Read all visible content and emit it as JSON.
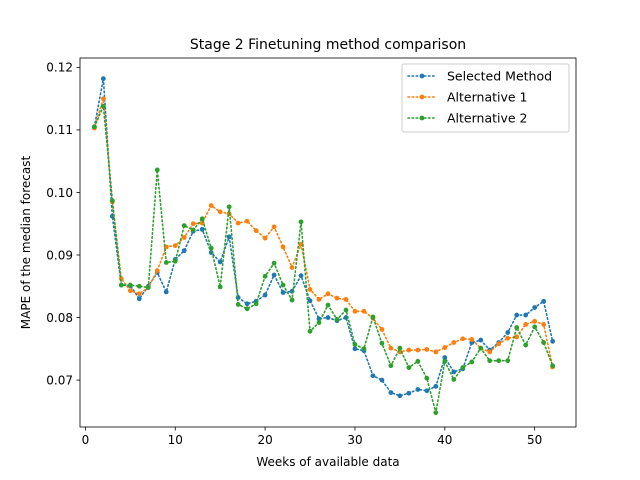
{
  "chart_data": {
    "type": "line",
    "title": "Stage 2 Finetuning method comparison",
    "xlabel": "Weeks of available data",
    "ylabel": "MAPE of the median forecast",
    "xlim": [
      -0.6,
      54.6
    ],
    "ylim": [
      0.0625,
      0.1215
    ],
    "xticks": [
      0,
      10,
      20,
      30,
      40,
      50
    ],
    "yticks": [
      0.07,
      0.08,
      0.09,
      0.1,
      0.11,
      0.12
    ],
    "ytick_labels": [
      "0.07",
      "0.08",
      "0.09",
      "0.10",
      "0.11",
      "0.12"
    ],
    "grid": false,
    "legend_position": "upper right",
    "x": [
      1,
      2,
      3,
      4,
      5,
      6,
      7,
      8,
      9,
      10,
      11,
      12,
      13,
      14,
      15,
      16,
      17,
      18,
      19,
      20,
      21,
      22,
      23,
      24,
      25,
      26,
      27,
      28,
      29,
      30,
      31,
      32,
      33,
      34,
      35,
      36,
      37,
      38,
      39,
      40,
      41,
      42,
      43,
      44,
      45,
      46,
      47,
      48,
      49,
      50,
      51,
      52
    ],
    "series": [
      {
        "name": "Selected Method",
        "color": "#1f77b4",
        "line_style": "dotted",
        "values": [
          0.1105,
          0.1182,
          0.0962,
          0.0852,
          0.0851,
          0.083,
          0.085,
          0.0872,
          0.0841,
          0.0893,
          0.0907,
          0.0938,
          0.0941,
          0.0904,
          0.0889,
          0.0929,
          0.0832,
          0.0822,
          0.0826,
          0.0836,
          0.0868,
          0.084,
          0.0842,
          0.0867,
          0.0827,
          0.0798,
          0.08,
          0.0795,
          0.08,
          0.075,
          0.0747,
          0.0707,
          0.07,
          0.068,
          0.0675,
          0.0679,
          0.0685,
          0.0683,
          0.069,
          0.0736,
          0.0713,
          0.0718,
          0.076,
          0.0764,
          0.0748,
          0.076,
          0.0776,
          0.0804,
          0.0804,
          0.0816,
          0.0826,
          0.0762
        ]
      },
      {
        "name": "Alternative 1",
        "color": "#ff7f0e",
        "line_style": "dotted",
        "values": [
          0.1103,
          0.115,
          0.0985,
          0.0862,
          0.0843,
          0.0838,
          0.0848,
          0.0875,
          0.0913,
          0.0915,
          0.0928,
          0.095,
          0.0951,
          0.0979,
          0.0969,
          0.0966,
          0.0951,
          0.0954,
          0.0939,
          0.0927,
          0.0945,
          0.0913,
          0.088,
          0.0917,
          0.0845,
          0.0829,
          0.0838,
          0.0831,
          0.0829,
          0.081,
          0.081,
          0.0799,
          0.0781,
          0.0751,
          0.0745,
          0.0748,
          0.0748,
          0.0749,
          0.0745,
          0.0752,
          0.076,
          0.0766,
          0.0765,
          0.0751,
          0.0745,
          0.0758,
          0.0767,
          0.0769,
          0.0789,
          0.0794,
          0.0789,
          0.0721
        ]
      },
      {
        "name": "Alternative 2",
        "color": "#2ca02c",
        "line_style": "dotted",
        "values": [
          0.1105,
          0.1138,
          0.0987,
          0.0852,
          0.0852,
          0.085,
          0.0848,
          0.1036,
          0.0888,
          0.089,
          0.0947,
          0.094,
          0.0958,
          0.0911,
          0.0849,
          0.0977,
          0.0821,
          0.0814,
          0.0822,
          0.0866,
          0.0887,
          0.0852,
          0.0828,
          0.0953,
          0.0778,
          0.0792,
          0.082,
          0.0797,
          0.0812,
          0.0757,
          0.075,
          0.0801,
          0.0759,
          0.0723,
          0.0751,
          0.072,
          0.073,
          0.0703,
          0.0648,
          0.073,
          0.0701,
          0.072,
          0.0729,
          0.0751,
          0.0731,
          0.0731,
          0.0731,
          0.0784,
          0.0756,
          0.0785,
          0.076,
          0.0723
        ]
      }
    ]
  }
}
